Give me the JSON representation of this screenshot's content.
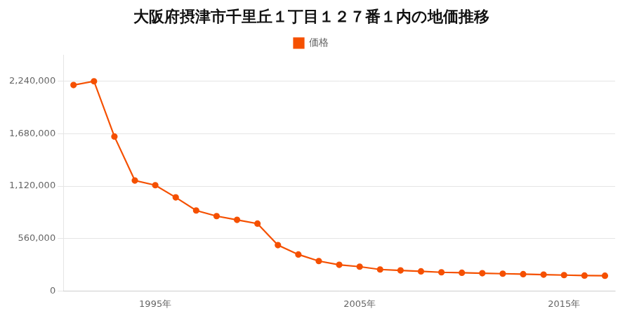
{
  "chart_data": {
    "type": "line",
    "title": "大阪府摂津市千里丘１丁目１２７番１内の地価推移",
    "x": [
      1991,
      1992,
      1993,
      1994,
      1995,
      1996,
      1997,
      1998,
      1999,
      2000,
      2001,
      2002,
      2003,
      2004,
      2005,
      2006,
      2007,
      2008,
      2009,
      2010,
      2011,
      2012,
      2013,
      2014,
      2015,
      2016,
      2017
    ],
    "series": [
      {
        "name": "価格",
        "color": "#f55000",
        "marker": "circle",
        "values": [
          2200000,
          2240000,
          1650000,
          1180000,
          1130000,
          1000000,
          860000,
          800000,
          760000,
          720000,
          490000,
          390000,
          320000,
          280000,
          260000,
          230000,
          220000,
          210000,
          200000,
          195000,
          190000,
          185000,
          180000,
          175000,
          170000,
          165000,
          163000
        ]
      }
    ],
    "xlim": [
      1990.5,
      2017.5
    ],
    "xticks": [
      {
        "value": 1995,
        "label": "1995年"
      },
      {
        "value": 2005,
        "label": "2005年"
      },
      {
        "value": 2015,
        "label": "2015年"
      }
    ],
    "ylim": [
      0,
      2520000
    ],
    "yticks": [
      0,
      {
        "value": 560000,
        "label": "560,000"
      },
      {
        "value": 1120000,
        "label": "1,120,000"
      },
      {
        "value": 1680000,
        "label": "1,680,000"
      },
      {
        "value": 2240000,
        "label": "2,240,000"
      }
    ],
    "grid": "y",
    "legend": "top"
  }
}
